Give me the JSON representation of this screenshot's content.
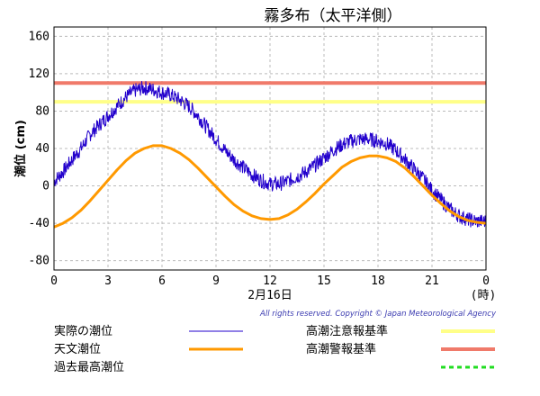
{
  "chart_data": {
    "type": "line",
    "title": "霧多布（太平洋側）",
    "ylabel": "潮位 (cm)",
    "xlabel": "2月16日",
    "x_unit": "(時)",
    "ylim": [
      -90,
      170
    ],
    "y_ticks": [
      "160",
      "120",
      "80",
      "40",
      "0",
      "-40",
      "-80"
    ],
    "xlim": [
      0,
      24
    ],
    "x_ticks": [
      "0",
      "3",
      "6",
      "9",
      "12",
      "15",
      "18",
      "21",
      "0"
    ],
    "grid": true,
    "thresholds": [
      {
        "name": "高潮注意報基準",
        "value": 90,
        "color": "#ffff88"
      },
      {
        "name": "高潮警報基準",
        "value": 110,
        "color": "#f07a6a"
      }
    ],
    "series": [
      {
        "name": "実際の潮位",
        "color": "#2200cc",
        "x": [
          0,
          0.5,
          1,
          1.5,
          2,
          2.5,
          3,
          3.5,
          4,
          4.5,
          5,
          5.5,
          6,
          6.5,
          7,
          7.5,
          8,
          8.5,
          9,
          9.5,
          10,
          10.5,
          11,
          11.5,
          12,
          12.5,
          13,
          13.5,
          14,
          14.5,
          15,
          15.5,
          16,
          16.5,
          17,
          17.5,
          18,
          18.5,
          19,
          19.5,
          20,
          20.5,
          21,
          21.5,
          22,
          22.5,
          23,
          23.5,
          24
        ],
        "values": [
          5,
          15,
          28,
          40,
          55,
          65,
          75,
          85,
          95,
          102,
          105,
          103,
          100,
          97,
          92,
          85,
          75,
          62,
          50,
          38,
          28,
          20,
          12,
          6,
          2,
          2,
          5,
          10,
          15,
          22,
          30,
          38,
          44,
          48,
          50,
          50,
          48,
          45,
          38,
          28,
          18,
          8,
          -5,
          -15,
          -25,
          -32,
          -36,
          -38,
          -38
        ]
      },
      {
        "name": "天文潮位",
        "color": "#ff9900",
        "x": [
          0,
          0.5,
          1,
          1.5,
          2,
          2.5,
          3,
          3.5,
          4,
          4.5,
          5,
          5.5,
          5.8,
          6,
          6.5,
          7,
          7.5,
          8,
          8.5,
          9,
          9.5,
          10,
          10.5,
          11,
          11.5,
          12,
          12.5,
          13,
          13.5,
          14,
          14.5,
          15,
          15.5,
          16,
          16.5,
          17,
          17.5,
          18,
          18.5,
          19,
          19.5,
          20,
          20.5,
          21,
          21.5,
          22,
          22.5,
          23,
          23.5,
          24
        ],
        "values": [
          -44,
          -40,
          -34,
          -26,
          -16,
          -5,
          6,
          17,
          27,
          35,
          40,
          43,
          43,
          43,
          40,
          35,
          28,
          19,
          9,
          -1,
          -11,
          -20,
          -27,
          -32,
          -35,
          -36,
          -35,
          -31,
          -25,
          -17,
          -8,
          2,
          11,
          20,
          26,
          30,
          32,
          32,
          30,
          26,
          19,
          10,
          0,
          -10,
          -19,
          -27,
          -33,
          -37,
          -39,
          -40
        ]
      }
    ],
    "legend": [
      {
        "label": "実際の潮位",
        "style": "line",
        "color": "#2200cc"
      },
      {
        "label": "天文潮位",
        "style": "line",
        "color": "#ff9900"
      },
      {
        "label": "過去最高潮位",
        "style": "dashed",
        "color": "#22dd22"
      },
      {
        "label": "高潮注意報基準",
        "style": "line",
        "color": "#ffff88"
      },
      {
        "label": "高潮警報基準",
        "style": "line",
        "color": "#f07a6a"
      }
    ],
    "copyright": "All rights reserved. Copyright © Japan Meteorological Agency"
  }
}
